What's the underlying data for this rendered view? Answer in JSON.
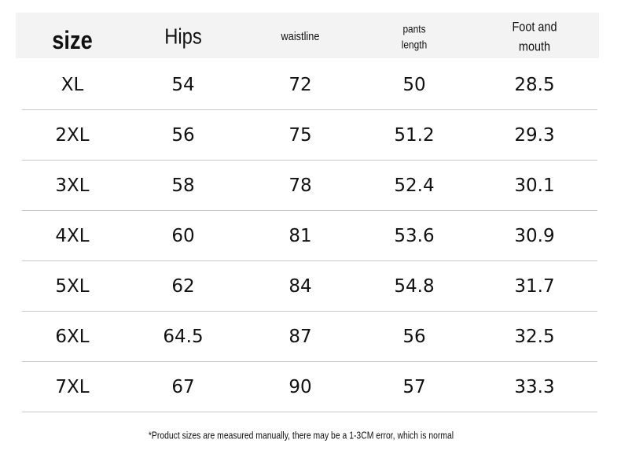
{
  "table": {
    "header": [
      "size",
      "Hips",
      "waistline",
      "pants length",
      "Foot and mouth"
    ],
    "rows": [
      [
        "XL",
        "54",
        "72",
        "50",
        "28.5"
      ],
      [
        "2XL",
        "56",
        "75",
        "51.2",
        "29.3"
      ],
      [
        "3XL",
        "58",
        "78",
        "52.4",
        "30.1"
      ],
      [
        "4XL",
        "60",
        "81",
        "53.6",
        "30.9"
      ],
      [
        "5XL",
        "62",
        "84",
        "54.8",
        "31.7"
      ],
      [
        "6XL",
        "64.5",
        "87",
        "56",
        "32.5"
      ],
      [
        "7XL",
        "67",
        "90",
        "57",
        "33.3"
      ]
    ]
  },
  "footnote": "*Product sizes are measured manually, there may be a 1-3CM error, which is normal"
}
